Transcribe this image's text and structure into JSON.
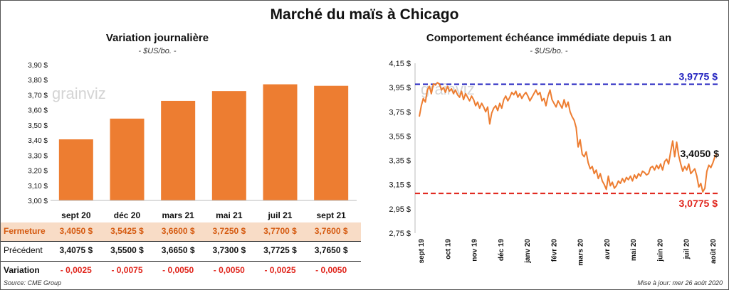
{
  "title": "Marché du maïs à Chicago",
  "left_panel": {
    "title": "Variation journalière",
    "unit": "- $US/bo. -"
  },
  "right_panel": {
    "title": "Comportement échéance immédiate depuis 1 an",
    "unit": "- $US/bo. -"
  },
  "watermark": "grainviz",
  "colors": {
    "bar": "#ed7d31",
    "line": "#ed7d31",
    "high_line": "#1f1fbf",
    "low_line": "#e0241b"
  },
  "chart_data": [
    {
      "type": "bar",
      "title": "Variation journalière",
      "categories": [
        "sept 20",
        "déc 20",
        "mars 21",
        "mai 21",
        "juil 21",
        "sept 21"
      ],
      "values": [
        3.405,
        3.5425,
        3.66,
        3.725,
        3.77,
        3.76
      ],
      "ylim": [
        3.0,
        3.9
      ],
      "yticks": [
        "3,00 $",
        "3,10 $",
        "3,20 $",
        "3,30 $",
        "3,40 $",
        "3,50 $",
        "3,60 $",
        "3,70 $",
        "3,80 $",
        "3,90 $"
      ],
      "grid": false
    },
    {
      "type": "line",
      "title": "Comportement échéance immédiate depuis 1 an",
      "x_ticks": [
        "sept 19",
        "oct 19",
        "nov 19",
        "déc 19",
        "janv 20",
        "févr 20",
        "mars 20",
        "avr 20",
        "mai 20",
        "juin 20",
        "juil 20",
        "août 20"
      ],
      "yticks": [
        "2,75 $",
        "2,95 $",
        "3,15 $",
        "3,35 $",
        "3,55 $",
        "3,75 $",
        "3,95 $",
        "4,15 $"
      ],
      "ylim": [
        2.75,
        4.15
      ],
      "series": [
        {
          "values": [
            3.71,
            3.8,
            3.86,
            3.83,
            3.93,
            3.96,
            3.9,
            3.98,
            3.97,
            3.99,
            3.98,
            3.93,
            3.95,
            3.91,
            3.96,
            3.92,
            3.94,
            3.9,
            3.93,
            3.89,
            3.87,
            3.92,
            3.85,
            3.9,
            3.87,
            3.84,
            3.88,
            3.85,
            3.8,
            3.83,
            3.78,
            3.82,
            3.79,
            3.75,
            3.79,
            3.65,
            3.74,
            3.78,
            3.8,
            3.76,
            3.82,
            3.78,
            3.85,
            3.88,
            3.84,
            3.87,
            3.91,
            3.89,
            3.92,
            3.87,
            3.9,
            3.86,
            3.89,
            3.91,
            3.88,
            3.84,
            3.87,
            3.9,
            3.93,
            3.89,
            3.91,
            3.84,
            3.86,
            3.8,
            3.88,
            3.93,
            3.85,
            3.82,
            3.79,
            3.84,
            3.81,
            3.78,
            3.85,
            3.79,
            3.83,
            3.75,
            3.71,
            3.68,
            3.62,
            3.46,
            3.52,
            3.4,
            3.38,
            3.42,
            3.33,
            3.28,
            3.3,
            3.24,
            3.27,
            3.2,
            3.24,
            3.18,
            3.15,
            3.11,
            3.22,
            3.14,
            3.17,
            3.12,
            3.14,
            3.18,
            3.16,
            3.2,
            3.17,
            3.21,
            3.19,
            3.22,
            3.18,
            3.23,
            3.2,
            3.24,
            3.22,
            3.26,
            3.25,
            3.23,
            3.24,
            3.29,
            3.3,
            3.27,
            3.31,
            3.28,
            3.32,
            3.27,
            3.34,
            3.36,
            3.32,
            3.42,
            3.51,
            3.38,
            3.5,
            3.39,
            3.32,
            3.26,
            3.3,
            3.27,
            3.32,
            3.24,
            3.26,
            3.28,
            3.22,
            3.13,
            3.16,
            3.09,
            3.12,
            3.26,
            3.31,
            3.29,
            3.33,
            3.38,
            3.405
          ]
        }
      ],
      "annotations": [
        {
          "label": "3,9775 $",
          "value": 3.9775,
          "style": "dashed",
          "color": "#1f1fbf"
        },
        {
          "label": "3,0775 $",
          "value": 3.0775,
          "style": "dashed",
          "color": "#e0241b"
        },
        {
          "label": "3,4050 $",
          "value": 3.405
        }
      ],
      "grid": false
    }
  ],
  "table": {
    "headers": [
      "sept 20",
      "déc 20",
      "mars 21",
      "mai 21",
      "juil 21",
      "sept 21"
    ],
    "rows": [
      {
        "label": "Fermeture",
        "values": [
          "3,4050 $",
          "3,5425 $",
          "3,6600 $",
          "3,7250 $",
          "3,7700 $",
          "3,7600 $"
        ]
      },
      {
        "label": "Précédent",
        "values": [
          "3,4075 $",
          "3,5500 $",
          "3,6650 $",
          "3,7300 $",
          "3,7725 $",
          "3,7650 $"
        ]
      },
      {
        "label": "Variation",
        "values": [
          "- 0,0025",
          "- 0,0075",
          "- 0,0050",
          "- 0,0050",
          "- 0,0025",
          "- 0,0050"
        ]
      }
    ]
  },
  "footer": {
    "source": "Source: CME Group",
    "updated": "Mise à jour: mer 26 août 2020"
  }
}
